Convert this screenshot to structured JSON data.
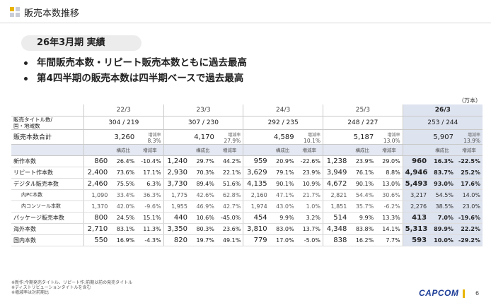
{
  "header": {
    "title": "販売本数推移"
  },
  "period": "26年3月期 実績",
  "bullets": [
    "年間販売本数・リピート販売本数ともに過去最高",
    "第4四半期の販売本数は四半期ベースで過去最高"
  ],
  "unit": "（万本）",
  "years": [
    "22/3",
    "23/3",
    "24/3",
    "25/3",
    "26/3"
  ],
  "titles_label": "販売タイトル数/\n国・地域数",
  "titles": [
    "304 / 219",
    "307 / 230",
    "292 / 235",
    "248 / 227",
    "253 / 244"
  ],
  "total_label": "販売本数合計",
  "growth_label": "増減率",
  "totals": [
    {
      "value": "3,260",
      "growth": "8.3%"
    },
    {
      "value": "4,170",
      "growth": "27.9%"
    },
    {
      "value": "4,589",
      "growth": "10.1%"
    },
    {
      "value": "5,187",
      "growth": "13.0%"
    },
    {
      "value": "5,907",
      "growth": "13.9%"
    }
  ],
  "col_headers": {
    "share": "構成比",
    "growth": "増減率"
  },
  "rows": [
    {
      "label": "新作本数",
      "sub": false,
      "cells": [
        [
          "860",
          "26.4%",
          "-10.4%"
        ],
        [
          "1,240",
          "29.7%",
          "44.2%"
        ],
        [
          "959",
          "20.9%",
          "-22.6%"
        ],
        [
          "1,238",
          "23.9%",
          "29.0%"
        ],
        [
          "960",
          "16.3%",
          "-22.5%"
        ]
      ]
    },
    {
      "label": "リピート作本数",
      "sub": false,
      "cells": [
        [
          "2,400",
          "73.6%",
          "17.1%"
        ],
        [
          "2,930",
          "70.3%",
          "22.1%"
        ],
        [
          "3,629",
          "79.1%",
          "23.9%"
        ],
        [
          "3,949",
          "76.1%",
          "8.8%"
        ],
        [
          "4,946",
          "83.7%",
          "25.2%"
        ]
      ]
    },
    {
      "label": "デジタル販売本数",
      "sub": false,
      "cells": [
        [
          "2,460",
          "75.5%",
          "6.3%"
        ],
        [
          "3,730",
          "89.4%",
          "51.6%"
        ],
        [
          "4,135",
          "90.1%",
          "10.9%"
        ],
        [
          "4,672",
          "90.1%",
          "13.0%"
        ],
        [
          "5,493",
          "93.0%",
          "17.6%"
        ]
      ]
    },
    {
      "label": "内PC本数",
      "sub": true,
      "cells": [
        [
          "1,090",
          "33.4%",
          "36.3%"
        ],
        [
          "1,775",
          "42.6%",
          "62.8%"
        ],
        [
          "2,160",
          "47.1%",
          "21.7%"
        ],
        [
          "2,821",
          "54.4%",
          "30.6%"
        ],
        [
          "3,217",
          "54.5%",
          "14.0%"
        ]
      ]
    },
    {
      "label": "内コンソール本数",
      "sub": true,
      "cells": [
        [
          "1,370",
          "42.0%",
          "-9.6%"
        ],
        [
          "1,955",
          "46.9%",
          "42.7%"
        ],
        [
          "1,974",
          "43.0%",
          "1.0%"
        ],
        [
          "1,851",
          "35.7%",
          "-6.2%"
        ],
        [
          "2,276",
          "38.5%",
          "23.0%"
        ]
      ]
    },
    {
      "label": "パッケージ販売本数",
      "sub": false,
      "cells": [
        [
          "800",
          "24.5%",
          "15.1%"
        ],
        [
          "440",
          "10.6%",
          "-45.0%"
        ],
        [
          "454",
          "9.9%",
          "3.2%"
        ],
        [
          "514",
          "9.9%",
          "13.3%"
        ],
        [
          "413",
          "7.0%",
          "-19.6%"
        ]
      ]
    },
    {
      "label": "海外本数",
      "sub": false,
      "cells": [
        [
          "2,710",
          "83.1%",
          "11.3%"
        ],
        [
          "3,350",
          "80.3%",
          "23.6%"
        ],
        [
          "3,810",
          "83.0%",
          "13.7%"
        ],
        [
          "4,348",
          "83.8%",
          "14.1%"
        ],
        [
          "5,313",
          "89.9%",
          "22.2%"
        ]
      ]
    },
    {
      "label": "国内本数",
      "sub": false,
      "cells": [
        [
          "550",
          "16.9%",
          "-4.3%"
        ],
        [
          "820",
          "19.7%",
          "49.1%"
        ],
        [
          "779",
          "17.0%",
          "-5.0%"
        ],
        [
          "838",
          "16.2%",
          "7.7%"
        ],
        [
          "593",
          "10.0%",
          "-29.2%"
        ]
      ]
    }
  ],
  "notes": [
    "※新作:今期発売タイトル、リピート作:前期以前の発売タイトル",
    "※ディストリビューションタイトルを含む",
    "※増減率は対前期比"
  ],
  "footer": {
    "logo": "CAPCOM",
    "page": "6"
  }
}
